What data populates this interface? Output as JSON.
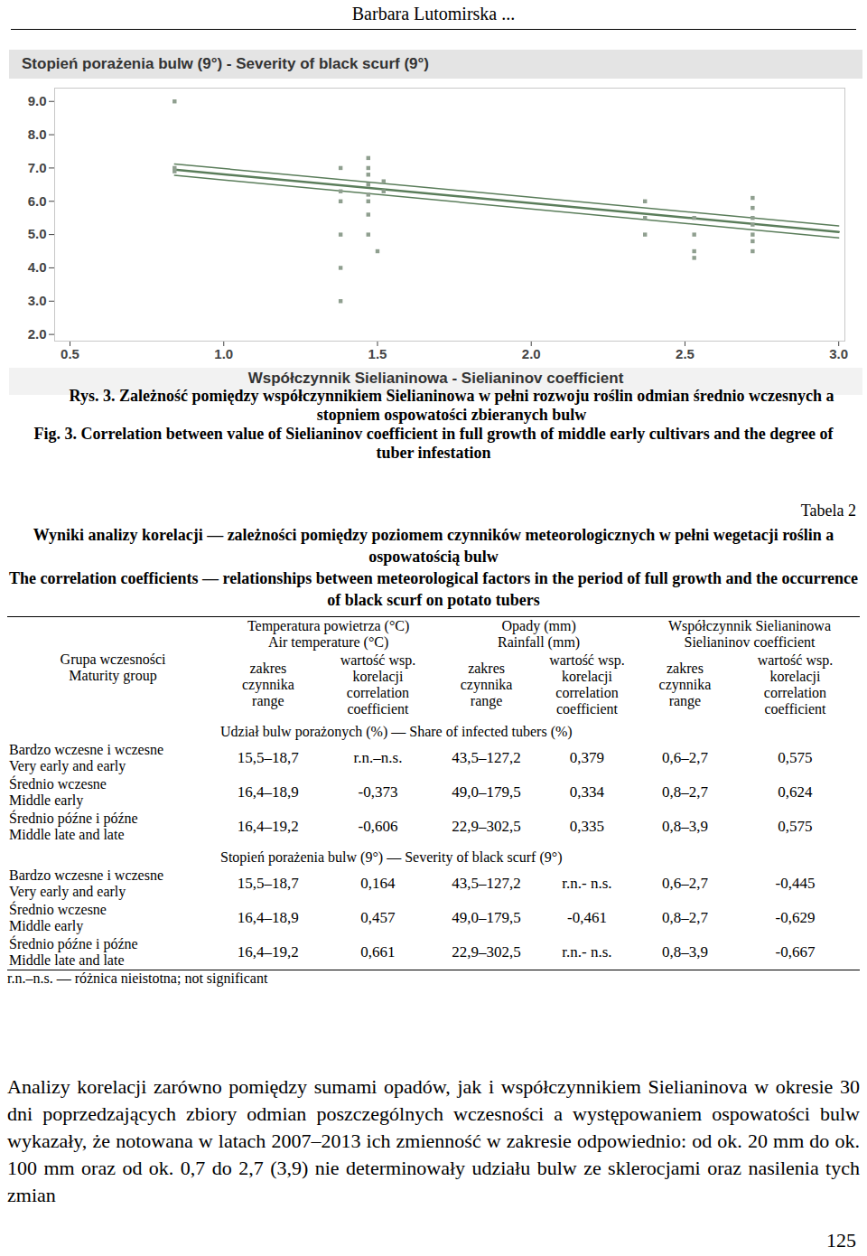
{
  "header": "Barbara Lutomirska ...",
  "chart_data": {
    "type": "scatter",
    "title": "Stopień porażenia bulw (9°) - Severity of black scurf (9°)",
    "x_label": "Współczynnik Sielianinowa - Sielianinov coefficient",
    "x": [
      0.84,
      0.84,
      0.84,
      1.38,
      1.38,
      1.38,
      1.38,
      1.38,
      1.38,
      1.47,
      1.47,
      1.47,
      1.47,
      1.47,
      1.47,
      1.47,
      1.47,
      1.5,
      1.52,
      1.52,
      2.37,
      2.37,
      2.37,
      2.53,
      2.53,
      2.53,
      2.53,
      2.72,
      2.72,
      2.72,
      2.72,
      2.72,
      2.72,
      2.72
    ],
    "values": [
      9.0,
      7.0,
      6.9,
      7.0,
      6.3,
      6.0,
      5.0,
      4.0,
      3.0,
      7.3,
      7.0,
      6.8,
      6.5,
      6.2,
      6.0,
      5.6,
      5.0,
      4.5,
      6.6,
      6.3,
      6.0,
      5.5,
      5.0,
      5.5,
      5.0,
      4.5,
      4.3,
      6.1,
      5.8,
      5.5,
      5.3,
      5.0,
      4.8,
      4.5
    ],
    "color": "#8f9f8f",
    "marker": "square",
    "fit": {
      "type": "line",
      "color": "#5a7d5a",
      "x": [
        0.84,
        3.0
      ],
      "values": [
        6.95,
        5.08
      ],
      "lower": [
        6.78,
        4.9
      ],
      "upper": [
        7.12,
        5.26
      ]
    },
    "xlim": [
      0.45,
      3.02
    ],
    "xticks": [
      0.5,
      {
        "value": 1,
        "label": "1.0"
      },
      1.5,
      {
        "value": 2,
        "label": "2.0"
      },
      2.5,
      {
        "value": 3,
        "label": "3.0"
      }
    ],
    "ylim": [
      1.8,
      9.4
    ],
    "yticks": [
      {
        "value": 2,
        "label": "2.0"
      },
      {
        "value": 3,
        "label": "3.0"
      },
      {
        "value": 4,
        "label": "4.0"
      },
      {
        "value": 5,
        "label": "5.0"
      },
      {
        "value": 6,
        "label": "6.0"
      },
      {
        "value": 7,
        "label": "7.0"
      },
      {
        "value": 8,
        "label": "8.0"
      },
      {
        "value": 9,
        "label": "9.0"
      }
    ],
    "grid": false
  },
  "figure_caption": {
    "pl": "Rys. 3. Zależność pomiędzy współczynnikiem Sielianinowa w pełni rozwoju roślin odmian średnio wczesnych a stopniem ospowatości zbieranych bulw",
    "en": "Fig. 3. Correlation between value of Sielianinov coefficient in full growth of middle early cultivars and the degree of tuber infestation"
  },
  "table": {
    "label": "Tabela 2",
    "title_pl": "Wyniki analizy korelacji — zależności pomiędzy poziomem czynników meteorologicznych w pełni wegetacji roślin a ospowatością bulw",
    "title_en": "The correlation coefficients — relationships between meteorological factors in the period of full growth and the occurrence of black scurf on potato tubers",
    "group_header": [
      "Grupa wczesności",
      "Maturity group"
    ],
    "factor_headers": [
      [
        "Temperatura powietrza (°C)",
        "Air temperature (°C)"
      ],
      [
        "Opady (mm)",
        "Rainfall (mm)"
      ],
      [
        "Współczynnik Sielianinowa",
        "Sielianinov coefficient"
      ]
    ],
    "sub_headers": [
      [
        "zakres",
        "czynnika",
        "range"
      ],
      [
        "wartość wsp.",
        "korelacji",
        "correlation",
        "coefficient"
      ]
    ],
    "sections": [
      {
        "title": "Udział bulw porażonych (%) — Share of infected tubers (%)",
        "rows": [
          [
            "Bardzo wczesne i wczesne",
            "Very early and early",
            "15,5–18,7",
            "r.n.–n.s.",
            "43,5–127,2",
            "0,379",
            "0,6–2,7",
            "0,575"
          ],
          [
            "Średnio wczesne",
            "Middle early",
            "16,4–18,9",
            "-0,373",
            "49,0–179,5",
            "0,334",
            "0,8–2,7",
            "0,624"
          ],
          [
            "Średnio późne i późne",
            "Middle late and late",
            "16,4–19,2",
            "-0,606",
            "22,9–302,5",
            "0,335",
            "0,8–3,9",
            "0,575"
          ]
        ]
      },
      {
        "title": "Stopień porażenia bulw (9°) — Severity of black scurf (9°)",
        "rows": [
          [
            "Bardzo wczesne i wczesne",
            "Very early and early",
            "15,5–18,7",
            "0,164",
            "43,5–127,2",
            "r.n.- n.s.",
            "0,6–2,7",
            "-0,445"
          ],
          [
            "Średnio wczesne",
            "Middle early",
            "16,4–18,9",
            "0,457",
            "49,0–179,5",
            "-0,461",
            "0,8–2,7",
            "-0,629"
          ],
          [
            "Średnio późne i późne",
            "Middle late and late",
            "16,4–19,2",
            "0,661",
            "22,9–302,5",
            "r.n.- n.s.",
            "0,8–3,9",
            "-0,667"
          ]
        ]
      }
    ],
    "footnote": "r.n.–n.s. — różnica nieistotna; not significant"
  },
  "paragraph": "Analizy korelacji zarówno pomiędzy sumami opadów, jak i współczynnikiem Sielianinova w okresie 30 dni poprzedzających zbiory odmian poszczególnych wczesności a występowaniem ospowatości bulw wykazały, że notowana w latach 2007–2013 ich zmienność w zakresie odpowiednio: od ok. 20 mm do ok. 100 mm oraz od ok. 0,7 do 2,7 (3,9) nie determinowały udziału bulw ze sklerocjami oraz nasilenia tych zmian",
  "page_number": "125"
}
